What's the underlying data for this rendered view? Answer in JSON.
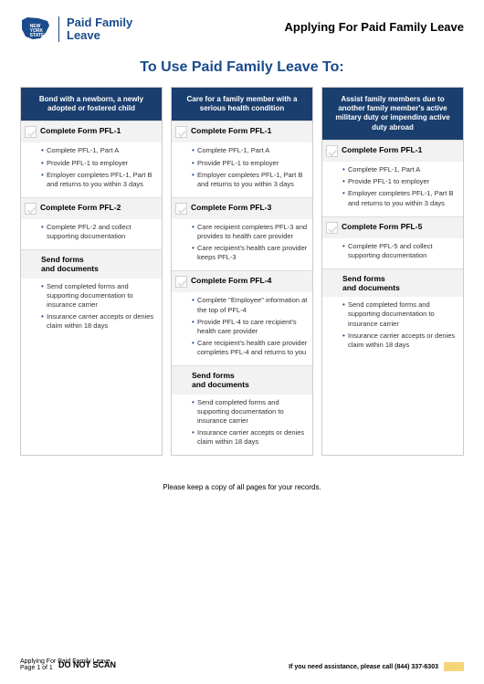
{
  "colors": {
    "brand_blue": "#1a4b8c",
    "header_navy": "#1a3e6e",
    "bullet_blue": "#1a4b8c",
    "step_bg": "#f2f2f2",
    "yellow": "#f5d57a"
  },
  "logo": {
    "state_lines": [
      "NEW",
      "YORK",
      "STATE"
    ],
    "program_line1": "Paid Family",
    "program_line2": "Leave"
  },
  "header": {
    "applying": "Applying For Paid Family Leave"
  },
  "title": "To Use Paid Family Leave To:",
  "columns": [
    {
      "header": "Bond with a newborn, a newly adopted or fostered child",
      "steps": [
        {
          "checkbox": true,
          "title": "Complete Form PFL-1",
          "bullets": [
            "Complete PFL-1, Part A",
            "Provide PFL-1 to employer",
            "Employer completes PFL-1, Part B and returns to you within 3 days"
          ]
        },
        {
          "checkbox": true,
          "title": "Complete Form PFL-2",
          "bullets": [
            "Complete PFL-2 and collect supporting documentation"
          ]
        },
        {
          "checkbox": false,
          "title": "Send forms\nand documents",
          "bullets": [
            "Send completed forms and supporting documentation to insurance carrier",
            "Insurance carrier accepts or denies claim within 18 days"
          ]
        }
      ]
    },
    {
      "header": "Care for a family member with a serious health condition",
      "steps": [
        {
          "checkbox": true,
          "title": "Complete Form PFL-1",
          "bullets": [
            "Complete PFL-1, Part A",
            "Provide PFL-1 to employer",
            "Employer completes PFL-1, Part B and returns to you within 3 days"
          ]
        },
        {
          "checkbox": true,
          "title": "Complete Form PFL-3",
          "bullets": [
            "Care recipient completes PFL-3 and provides to health care provider",
            "Care recipient's health care provider keeps PFL-3"
          ]
        },
        {
          "checkbox": true,
          "title": "Complete Form PFL-4",
          "bullets": [
            "Complete \"Employee\" information at the top of PFL-4",
            "Provide PFL-4 to care recipient's health care provider",
            "Care recipient's health care provider completes PFL-4 and returns to you"
          ]
        },
        {
          "checkbox": false,
          "title": "Send forms\nand documents",
          "bullets": [
            "Send completed forms and supporting documentation to insurance carrier",
            "Insurance carrier accepts or denies claim within 18 days"
          ]
        }
      ]
    },
    {
      "header": "Assist family members due to another family member's active military duty or impending active duty abroad",
      "steps": [
        {
          "checkbox": true,
          "title": "Complete Form PFL-1",
          "bullets": [
            "Complete PFL-1, Part A",
            "Provide PFL-1 to employer",
            "Employer completes PFL-1, Part B and returns to you within 3 days"
          ]
        },
        {
          "checkbox": true,
          "title": "Complete Form PFL-5",
          "bullets": [
            "Complete PFL-5 and collect supporting documentation"
          ]
        },
        {
          "checkbox": false,
          "title": "Send forms\nand documents",
          "bullets": [
            "Send completed forms and supporting documentation to insurance carrier",
            "Insurance carrier accepts or denies claim within 18 days"
          ]
        }
      ]
    }
  ],
  "footnote": "Please keep a copy of all pages for your records.",
  "footer": {
    "left_line1": "Applying For Paid Family Leave",
    "left_line2": "Page 1 of 1",
    "donotscan": "DO NOT SCAN",
    "assist": "If you need assistance, please call (844) 337-6303"
  }
}
